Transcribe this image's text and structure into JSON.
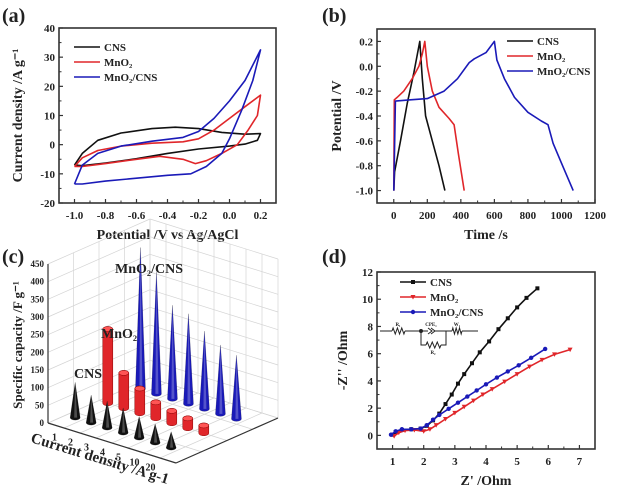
{
  "figure": {
    "panels": [
      {
        "id": "a",
        "label": "(a)"
      },
      {
        "id": "b",
        "label": "(b)"
      },
      {
        "id": "c",
        "label": "(c)"
      },
      {
        "id": "d",
        "label": "(d)"
      }
    ]
  },
  "colors": {
    "CNS": "#111111",
    "MnO2": "#e0262a",
    "MnO2_CNS": "#1a1ab8"
  },
  "chart_data": [
    {
      "panel": "a",
      "type": "line",
      "title": "",
      "xlabel": "Potential /V vs Ag/AgCl",
      "ylabel": "Current density /A g⁻¹",
      "xlim": [
        -1.1,
        0.3
      ],
      "ylim": [
        -20,
        40
      ],
      "xticks": [
        "-1.0",
        "-0.8",
        "-0.6",
        "-0.4",
        "-0.2",
        "0.0",
        "0.2"
      ],
      "xtick_values": [
        -1.0,
        -0.8,
        -0.6,
        -0.4,
        -0.2,
        0.0,
        0.2
      ],
      "yticks": [
        "-20",
        "-10",
        "0",
        "10",
        "20",
        "30",
        "40"
      ],
      "ytick_values": [
        -20,
        -10,
        0,
        10,
        20,
        30,
        40
      ],
      "legend_position": "top-left",
      "series": [
        {
          "name": "CNS",
          "color_key": "CNS",
          "points": [
            [
              -1.0,
              -7
            ],
            [
              -0.95,
              -3
            ],
            [
              -0.85,
              1.5
            ],
            [
              -0.7,
              4
            ],
            [
              -0.5,
              5.5
            ],
            [
              -0.35,
              6
            ],
            [
              -0.2,
              5.5
            ],
            [
              -0.05,
              4.2
            ],
            [
              0.1,
              3.6
            ],
            [
              0.2,
              3.8
            ],
            [
              0.18,
              1.5
            ],
            [
              0.1,
              0.2
            ],
            [
              0.0,
              -0.5
            ],
            [
              -0.2,
              -1.5
            ],
            [
              -0.4,
              -3
            ],
            [
              -0.6,
              -4.8
            ],
            [
              -0.8,
              -6.3
            ],
            [
              -0.95,
              -7.2
            ],
            [
              -1.0,
              -7
            ]
          ]
        },
        {
          "name": "MnO₂",
          "color_key": "MnO2",
          "points": [
            [
              -1.0,
              -7.5
            ],
            [
              -0.95,
              -4.5
            ],
            [
              -0.85,
              -2
            ],
            [
              -0.7,
              -0.5
            ],
            [
              -0.5,
              0.5
            ],
            [
              -0.3,
              1
            ],
            [
              -0.2,
              2
            ],
            [
              -0.1,
              5
            ],
            [
              0.0,
              9
            ],
            [
              0.1,
              13
            ],
            [
              0.2,
              17
            ],
            [
              0.18,
              10
            ],
            [
              0.12,
              5
            ],
            [
              0.05,
              0
            ],
            [
              -0.05,
              -3
            ],
            [
              -0.15,
              -5.5
            ],
            [
              -0.22,
              -6.5
            ],
            [
              -0.3,
              -5
            ],
            [
              -0.45,
              -4
            ],
            [
              -0.6,
              -5
            ],
            [
              -0.8,
              -6.5
            ],
            [
              -0.95,
              -7.5
            ],
            [
              -1.0,
              -7.5
            ]
          ]
        },
        {
          "name": "MnO₂/CNS",
          "color_key": "MnO2_CNS",
          "points": [
            [
              -1.0,
              -13.5
            ],
            [
              -0.95,
              -7
            ],
            [
              -0.85,
              -3
            ],
            [
              -0.7,
              -0.5
            ],
            [
              -0.5,
              1.2
            ],
            [
              -0.3,
              2.5
            ],
            [
              -0.2,
              4.5
            ],
            [
              -0.1,
              9
            ],
            [
              0.0,
              15
            ],
            [
              0.1,
              22
            ],
            [
              0.2,
              32.5
            ],
            [
              0.15,
              22
            ],
            [
              0.08,
              12
            ],
            [
              0.0,
              2
            ],
            [
              -0.05,
              -3
            ],
            [
              -0.15,
              -7.5
            ],
            [
              -0.25,
              -10
            ],
            [
              -0.4,
              -10.5
            ],
            [
              -0.6,
              -11.5
            ],
            [
              -0.8,
              -12.5
            ],
            [
              -0.95,
              -13.5
            ],
            [
              -1.0,
              -13.5
            ]
          ]
        }
      ]
    },
    {
      "panel": "b",
      "type": "line",
      "title": "",
      "xlabel": "Time /s",
      "ylabel": "Potential /V",
      "xlim": [
        -100,
        1200
      ],
      "ylim": [
        -1.1,
        0.3
      ],
      "xticks": [
        "0",
        "200",
        "400",
        "600",
        "800",
        "1000",
        "1200"
      ],
      "xtick_values": [
        0,
        200,
        400,
        600,
        800,
        1000,
        1200
      ],
      "yticks": [
        "-1.0",
        "-0.8",
        "-0.6",
        "-0.4",
        "-0.2",
        "0.0",
        "0.2"
      ],
      "ytick_values": [
        -1.0,
        -0.8,
        -0.6,
        -0.4,
        -0.2,
        0.0,
        0.2
      ],
      "legend_position": "top-right",
      "series": [
        {
          "name": "CNS",
          "color_key": "CNS",
          "points": [
            [
              0,
              -1.0
            ],
            [
              5,
              -0.85
            ],
            [
              40,
              -0.6
            ],
            [
              80,
              -0.3
            ],
            [
              120,
              -0.05
            ],
            [
              155,
              0.2
            ],
            [
              170,
              -0.1
            ],
            [
              190,
              -0.4
            ],
            [
              230,
              -0.6
            ],
            [
              270,
              -0.8
            ],
            [
              305,
              -1.0
            ]
          ]
        },
        {
          "name": "MnO₂",
          "color_key": "MnO2",
          "points": [
            [
              0,
              -1.0
            ],
            [
              3,
              -0.27
            ],
            [
              20,
              -0.25
            ],
            [
              60,
              -0.2
            ],
            [
              110,
              -0.1
            ],
            [
              150,
              0.0
            ],
            [
              170,
              0.1
            ],
            [
              185,
              0.2
            ],
            [
              200,
              0.0
            ],
            [
              230,
              -0.2
            ],
            [
              270,
              -0.33
            ],
            [
              330,
              -0.42
            ],
            [
              360,
              -0.47
            ],
            [
              385,
              -0.7
            ],
            [
              420,
              -1.0
            ]
          ]
        },
        {
          "name": "MnO₂/CNS",
          "color_key": "MnO2_CNS",
          "points": [
            [
              0,
              -1.0
            ],
            [
              10,
              -0.28
            ],
            [
              100,
              -0.27
            ],
            [
              200,
              -0.26
            ],
            [
              300,
              -0.2
            ],
            [
              380,
              -0.1
            ],
            [
              450,
              0.03
            ],
            [
              480,
              0.06
            ],
            [
              550,
              0.11
            ],
            [
              600,
              0.2
            ],
            [
              615,
              0.05
            ],
            [
              660,
              -0.1
            ],
            [
              720,
              -0.25
            ],
            [
              800,
              -0.37
            ],
            [
              880,
              -0.44
            ],
            [
              920,
              -0.47
            ],
            [
              950,
              -0.62
            ],
            [
              1000,
              -0.78
            ],
            [
              1070,
              -1.0
            ]
          ]
        }
      ]
    },
    {
      "panel": "c",
      "type": "bar",
      "subtype": "3d-bar",
      "title": "",
      "xlabel": "Current density /A g-1",
      "ylabel": "Specific capacity /F g⁻¹",
      "ylim": [
        0,
        450
      ],
      "categories": [
        "1",
        "2",
        "3",
        "4",
        "5",
        "10",
        "20"
      ],
      "yticks": [
        "0",
        "50",
        "100",
        "150",
        "200",
        "250",
        "300",
        "350",
        "400",
        "450"
      ],
      "ytick_values": [
        0,
        50,
        100,
        150,
        200,
        250,
        300,
        350,
        400,
        450
      ],
      "series": [
        {
          "name": "CNS",
          "color_key": "CNS",
          "shape": "cone",
          "values": [
            100,
            78,
            75,
            70,
            60,
            53,
            45
          ]
        },
        {
          "name": "MnO₂",
          "color_key": "MnO2",
          "shape": "cylinder",
          "values": [
            210,
            100,
            70,
            45,
            35,
            28,
            22
          ]
        },
        {
          "name": "MnO₂/CNS",
          "color_key": "MnO2_CNS",
          "shape": "cone",
          "values": [
            400,
            345,
            265,
            255,
            220,
            195,
            180
          ]
        }
      ]
    },
    {
      "panel": "d",
      "type": "line",
      "title": "",
      "xlabel": "Z' /Ohm",
      "ylabel": "-Z'' /Ohm",
      "xlim": [
        0.5,
        7.5
      ],
      "ylim": [
        -1,
        12
      ],
      "xticks": [
        "1",
        "2",
        "3",
        "4",
        "5",
        "6",
        "7"
      ],
      "xtick_values": [
        1,
        2,
        3,
        4,
        5,
        6,
        7
      ],
      "yticks": [
        "0",
        "2",
        "4",
        "6",
        "8",
        "10",
        "12"
      ],
      "ytick_values": [
        0,
        2,
        4,
        6,
        8,
        10,
        12
      ],
      "legend_position": "top-left",
      "inset": {
        "type": "equivalent-circuit",
        "labels": [
          "R₁",
          "CPE₁",
          "W₁",
          "R₂"
        ]
      },
      "series": [
        {
          "name": "CNS",
          "color_key": "CNS",
          "marker": "square",
          "points": [
            [
              1.0,
              0.05
            ],
            [
              1.1,
              0.25
            ],
            [
              1.3,
              0.4
            ],
            [
              1.6,
              0.45
            ],
            [
              1.9,
              0.5
            ],
            [
              2.1,
              0.7
            ],
            [
              2.3,
              1.1
            ],
            [
              2.5,
              1.6
            ],
            [
              2.7,
              2.3
            ],
            [
              2.9,
              3.0
            ],
            [
              3.1,
              3.8
            ],
            [
              3.3,
              4.5
            ],
            [
              3.55,
              5.3
            ],
            [
              3.8,
              6.1
            ],
            [
              4.1,
              6.9
            ],
            [
              4.4,
              7.8
            ],
            [
              4.7,
              8.6
            ],
            [
              5.0,
              9.4
            ],
            [
              5.3,
              10.1
            ],
            [
              5.65,
              10.8
            ]
          ]
        },
        {
          "name": "MnO₂",
          "color_key": "MnO2",
          "marker": "triangle-down",
          "points": [
            [
              1.05,
              -0.05
            ],
            [
              1.2,
              0.2
            ],
            [
              1.4,
              0.35
            ],
            [
              1.7,
              0.4
            ],
            [
              2.0,
              0.3
            ],
            [
              2.2,
              0.45
            ],
            [
              2.4,
              0.75
            ],
            [
              2.7,
              1.2
            ],
            [
              3.0,
              1.65
            ],
            [
              3.3,
              2.1
            ],
            [
              3.6,
              2.55
            ],
            [
              3.9,
              3.0
            ],
            [
              4.2,
              3.4
            ],
            [
              4.6,
              3.95
            ],
            [
              5.0,
              4.5
            ],
            [
              5.4,
              5.05
            ],
            [
              5.8,
              5.55
            ],
            [
              6.2,
              5.95
            ],
            [
              6.7,
              6.3
            ]
          ]
        },
        {
          "name": "MnO₂/CNS",
          "color_key": "MnO2_CNS",
          "marker": "circle",
          "points": [
            [
              0.95,
              0.05
            ],
            [
              1.1,
              0.3
            ],
            [
              1.3,
              0.45
            ],
            [
              1.6,
              0.45
            ],
            [
              1.9,
              0.5
            ],
            [
              2.1,
              0.75
            ],
            [
              2.3,
              1.15
            ],
            [
              2.5,
              1.5
            ],
            [
              2.8,
              1.95
            ],
            [
              3.1,
              2.4
            ],
            [
              3.4,
              2.85
            ],
            [
              3.7,
              3.3
            ],
            [
              4.0,
              3.75
            ],
            [
              4.35,
              4.25
            ],
            [
              4.7,
              4.7
            ],
            [
              5.05,
              5.15
            ],
            [
              5.45,
              5.7
            ],
            [
              5.9,
              6.35
            ]
          ]
        }
      ]
    }
  ]
}
